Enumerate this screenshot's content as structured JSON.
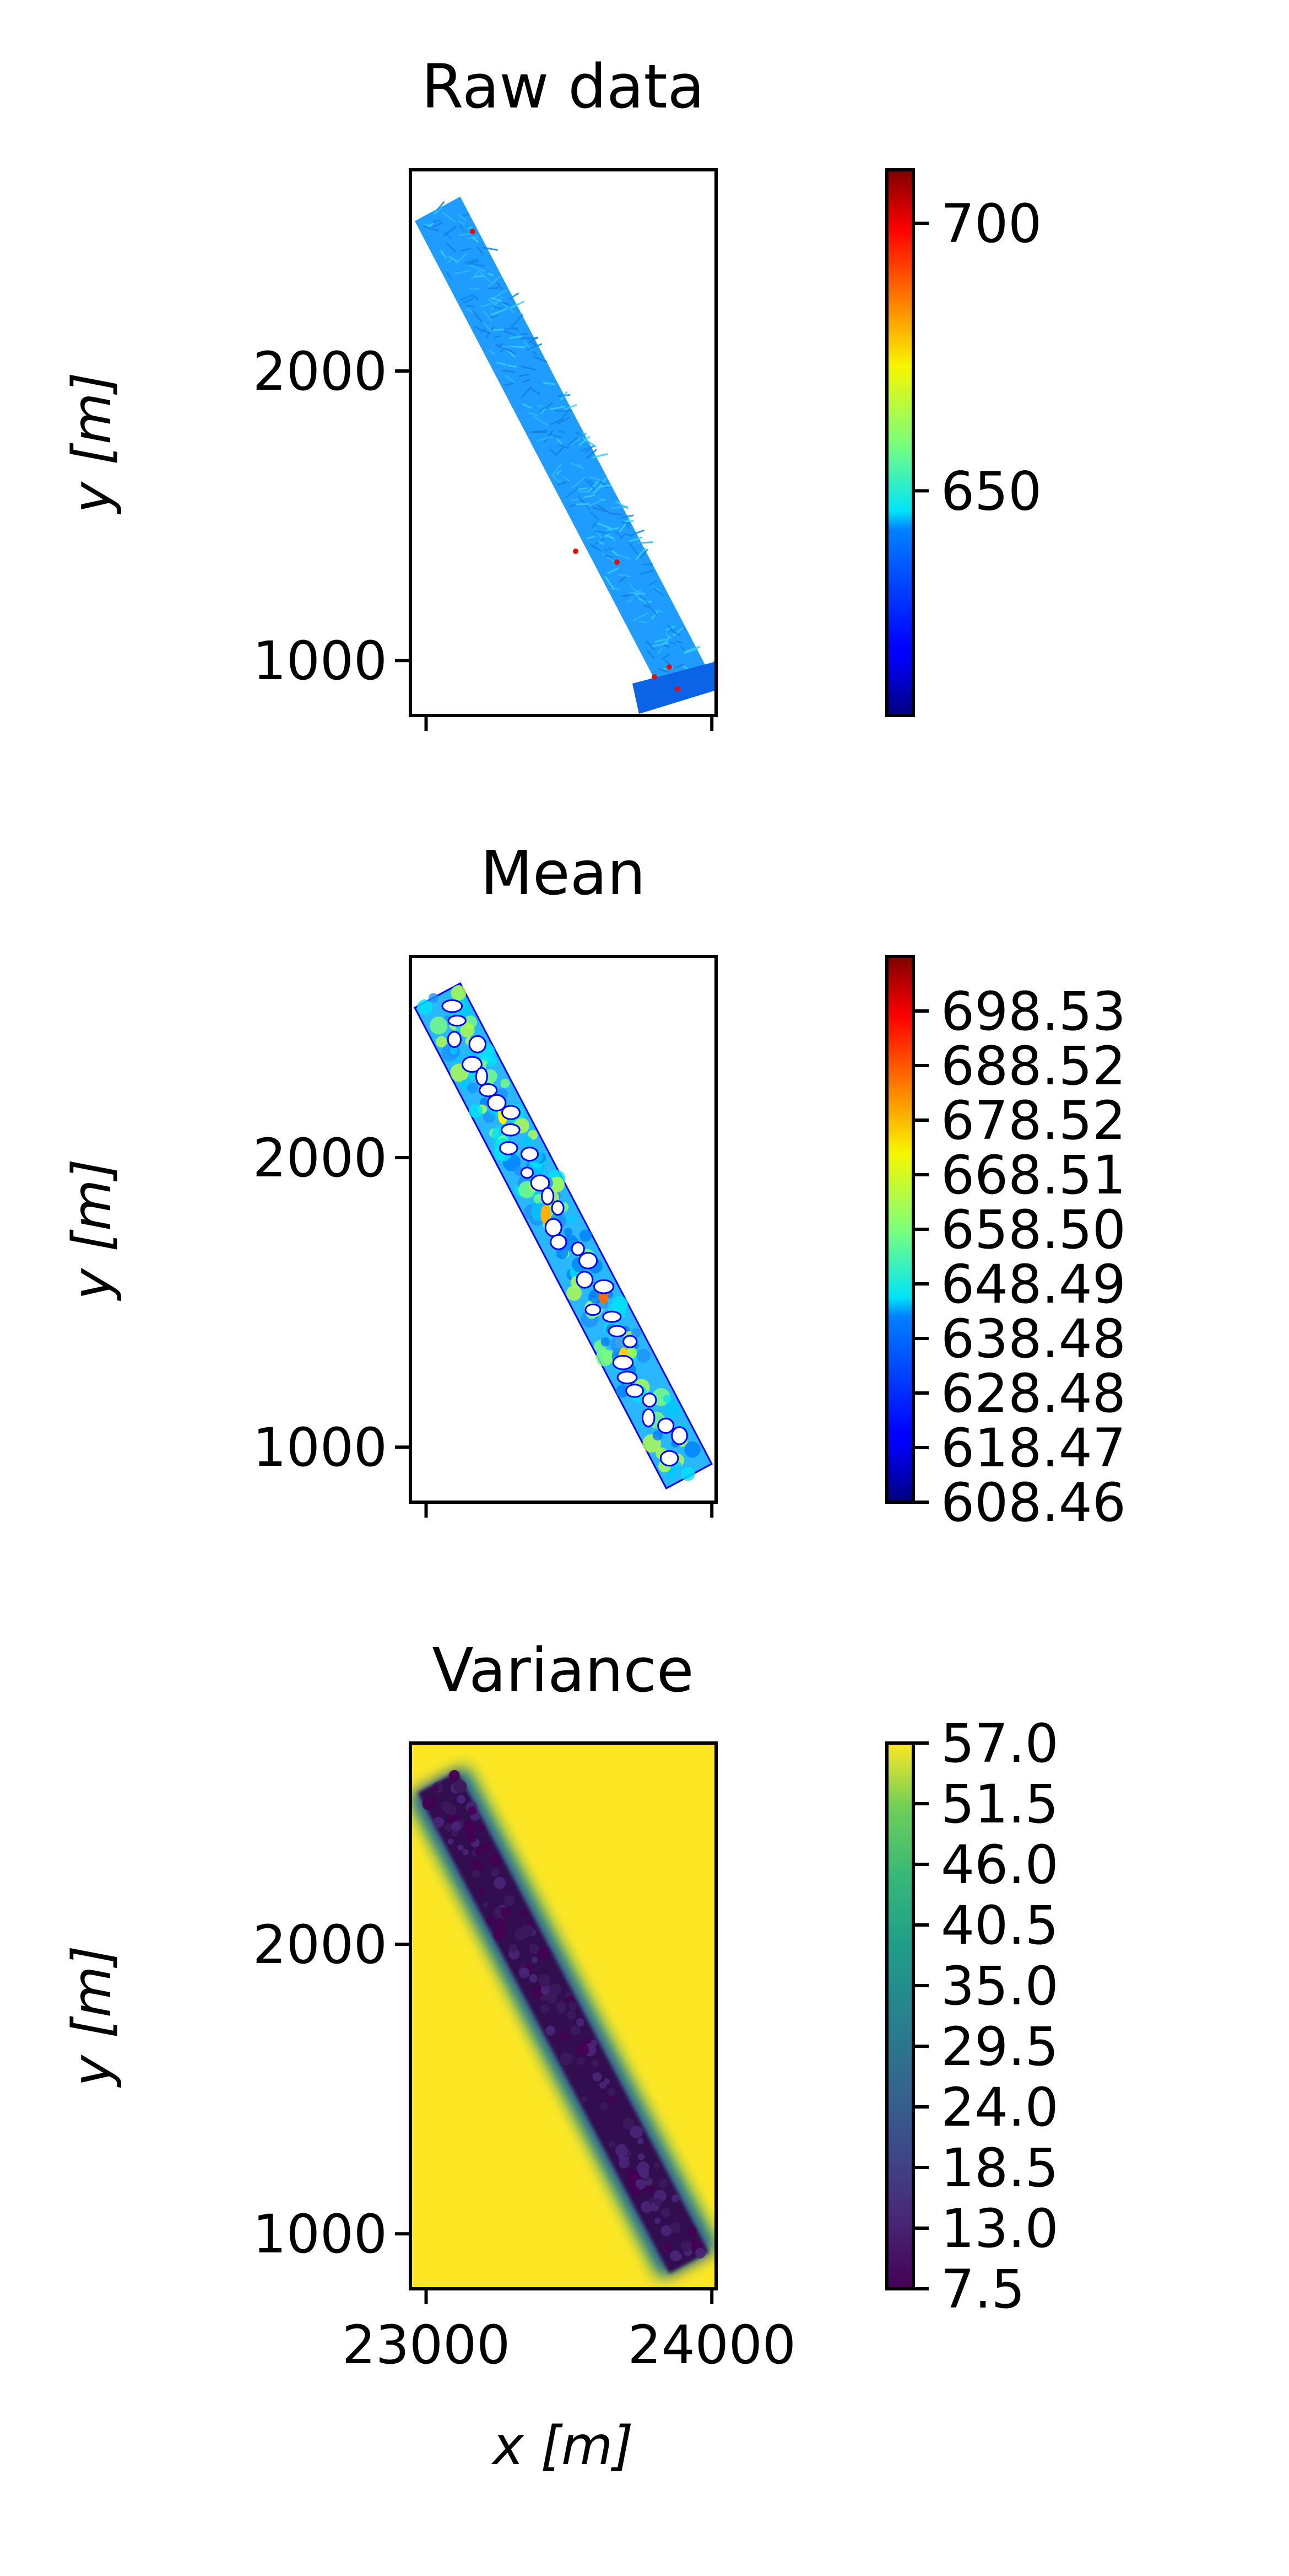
{
  "chart_data": [
    {
      "type": "heatmap",
      "title": "Raw data",
      "ylabel": "y [m]",
      "xlim": [
        22945,
        24015
      ],
      "ylim": [
        810,
        2695
      ],
      "yticks": [
        {
          "v": 1000,
          "label": "1000"
        },
        {
          "v": 2000,
          "label": "2000"
        }
      ],
      "xticks": [
        23000,
        24000
      ],
      "x_tick_labels_shown": false,
      "colormap": "jet",
      "colorbar": {
        "min": 608,
        "max": 710,
        "ticks": [
          {
            "v": 700,
            "label": "700"
          },
          {
            "v": 650,
            "label": "650"
          }
        ]
      },
      "field": "raw survey lines along diagonal strip, values mostly 630-645 with scattered high points near 700"
    },
    {
      "type": "heatmap",
      "title": "Mean",
      "ylabel": "y [m]",
      "xlim": [
        22945,
        24015
      ],
      "ylim": [
        810,
        2695
      ],
      "yticks": [
        {
          "v": 1000,
          "label": "1000"
        },
        {
          "v": 2000,
          "label": "2000"
        }
      ],
      "xticks": [
        23000,
        24000
      ],
      "x_tick_labels_shown": false,
      "colormap": "jet",
      "colorbar": {
        "min": 608.46,
        "max": 708.54,
        "ticks": [
          {
            "v": 698.53,
            "label": "698.53"
          },
          {
            "v": 688.52,
            "label": "688.52"
          },
          {
            "v": 678.52,
            "label": "678.52"
          },
          {
            "v": 668.51,
            "label": "668.51"
          },
          {
            "v": 658.5,
            "label": "658.50"
          },
          {
            "v": 648.49,
            "label": "648.49"
          },
          {
            "v": 638.48,
            "label": "638.48"
          },
          {
            "v": 628.48,
            "label": "628.48"
          },
          {
            "v": 618.47,
            "label": "618.47"
          },
          {
            "v": 608.46,
            "label": "608.46"
          }
        ]
      },
      "field": "interpolated mean along diagonal strip with holes"
    },
    {
      "type": "heatmap",
      "title": "Variance",
      "xlabel": "x [m]",
      "ylabel": "y [m]",
      "xlim": [
        22945,
        24015
      ],
      "ylim": [
        810,
        2695
      ],
      "yticks": [
        {
          "v": 1000,
          "label": "1000"
        },
        {
          "v": 2000,
          "label": "2000"
        }
      ],
      "xticks": [
        {
          "v": 23000,
          "label": "23000"
        },
        {
          "v": 24000,
          "label": "24000"
        }
      ],
      "x_tick_labels_shown": true,
      "colormap": "viridis",
      "colorbar": {
        "min": 7.5,
        "max": 57.0,
        "ticks": [
          {
            "v": 57.0,
            "label": "57.0"
          },
          {
            "v": 51.5,
            "label": "51.5"
          },
          {
            "v": 46.0,
            "label": "46.0"
          },
          {
            "v": 40.5,
            "label": "40.5"
          },
          {
            "v": 35.0,
            "label": "35.0"
          },
          {
            "v": 29.5,
            "label": "29.5"
          },
          {
            "v": 24.0,
            "label": "24.0"
          },
          {
            "v": 18.5,
            "label": "18.5"
          },
          {
            "v": 13.0,
            "label": "13.0"
          },
          {
            "v": 7.5,
            "label": "7.5"
          }
        ]
      },
      "field": "low variance (~8-15) inside diagonal strip, saturated 57.0 outside"
    }
  ],
  "strip": {
    "centerline": [
      [
        23040,
        2560
      ],
      [
        23500,
        1600
      ],
      [
        23920,
        900
      ]
    ],
    "half_width_m": 90
  },
  "colors": {
    "axis": "#000000",
    "background": "#ffffff",
    "raw_strip": "#1aa3ff",
    "variance_high": "#fde725",
    "variance_low": "#30104f"
  }
}
